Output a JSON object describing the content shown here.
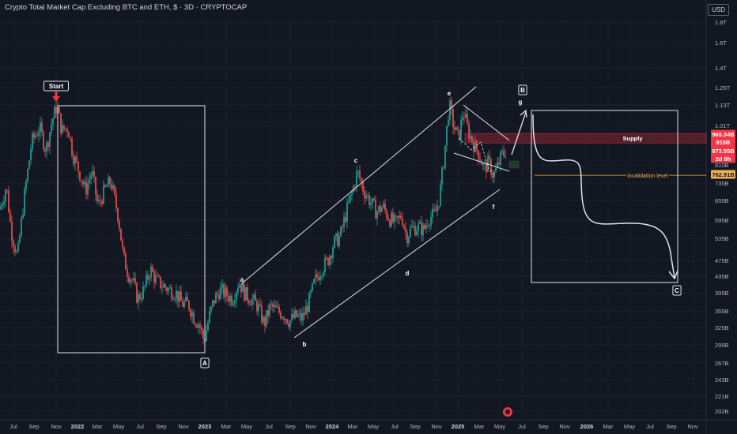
{
  "header": {
    "title": "Crypto Total Market Cap Excluding BTC and ETH, $ · 3D · CRYPTOCAP",
    "currency": "USD"
  },
  "colors": {
    "background": "#131722",
    "up": "#26a69a",
    "down": "#ef5350",
    "line": "#e0e3eb",
    "supply": "#f23645",
    "invalidation": "#f0b152"
  },
  "chart_data": {
    "type": "candlestick",
    "log_scale": true,
    "y_ticks": [
      "1.8T",
      "1.6T",
      "1.4T",
      "1.25T",
      "1.13T",
      "1.01T",
      "810B",
      "735B",
      "655B",
      "595B",
      "535B",
      "475B",
      "435B",
      "395B",
      "355B",
      "325B",
      "295B",
      "267B",
      "243B",
      "221B",
      "202B"
    ],
    "x_ticks": [
      {
        "label": "Jul"
      },
      {
        "label": "Sep"
      },
      {
        "label": "Nov"
      },
      {
        "label": "2022",
        "bold": true
      },
      {
        "label": "Mar"
      },
      {
        "label": "May"
      },
      {
        "label": "Jul"
      },
      {
        "label": "Sep"
      },
      {
        "label": "Nov"
      },
      {
        "label": "2023",
        "bold": true
      },
      {
        "label": "Mar"
      },
      {
        "label": "May"
      },
      {
        "label": "Jul"
      },
      {
        "label": "Sep"
      },
      {
        "label": "Nov"
      },
      {
        "label": "2024",
        "bold": true
      },
      {
        "label": "Mar"
      },
      {
        "label": "May"
      },
      {
        "label": "Jul"
      },
      {
        "label": "Sep"
      },
      {
        "label": "Nov"
      },
      {
        "label": "2025",
        "bold": true
      },
      {
        "label": "Mar"
      },
      {
        "label": "May"
      },
      {
        "label": "Jul"
      },
      {
        "label": "Sep"
      },
      {
        "label": "Nov"
      },
      {
        "label": "2026",
        "bold": true
      },
      {
        "label": "Mar"
      },
      {
        "label": "May"
      },
      {
        "label": "Jul"
      },
      {
        "label": "Sep"
      },
      {
        "label": "Nov"
      }
    ],
    "price_path": [
      [
        0,
        630
      ],
      [
        8,
        720
      ],
      [
        14,
        560
      ],
      [
        22,
        480
      ],
      [
        30,
        660
      ],
      [
        40,
        920
      ],
      [
        50,
        1000
      ],
      [
        58,
        880
      ],
      [
        66,
        1040
      ],
      [
        72,
        1130
      ],
      [
        78,
        980
      ],
      [
        86,
        1000
      ],
      [
        92,
        860
      ],
      [
        100,
        780
      ],
      [
        108,
        700
      ],
      [
        116,
        780
      ],
      [
        124,
        640
      ],
      [
        132,
        700
      ],
      [
        140,
        740
      ],
      [
        150,
        600
      ],
      [
        156,
        480
      ],
      [
        162,
        440
      ],
      [
        168,
        420
      ],
      [
        174,
        380
      ],
      [
        182,
        400
      ],
      [
        190,
        450
      ],
      [
        198,
        420
      ],
      [
        206,
        410
      ],
      [
        214,
        400
      ],
      [
        222,
        395
      ],
      [
        230,
        370
      ],
      [
        238,
        370
      ],
      [
        246,
        340
      ],
      [
        252,
        330
      ],
      [
        258,
        300
      ],
      [
        264,
        340
      ],
      [
        270,
        375
      ],
      [
        278,
        400
      ],
      [
        286,
        390
      ],
      [
        294,
        380
      ],
      [
        302,
        420
      ],
      [
        310,
        390
      ],
      [
        318,
        380
      ],
      [
        326,
        365
      ],
      [
        334,
        330
      ],
      [
        342,
        365
      ],
      [
        350,
        355
      ],
      [
        358,
        350
      ],
      [
        366,
        335
      ],
      [
        374,
        345
      ],
      [
        382,
        340
      ],
      [
        390,
        370
      ],
      [
        398,
        420
      ],
      [
        406,
        450
      ],
      [
        414,
        470
      ],
      [
        422,
        520
      ],
      [
        430,
        540
      ],
      [
        438,
        620
      ],
      [
        446,
        700
      ],
      [
        452,
        780
      ],
      [
        460,
        700
      ],
      [
        468,
        660
      ],
      [
        476,
        620
      ],
      [
        484,
        640
      ],
      [
        492,
        600
      ],
      [
        500,
        580
      ],
      [
        508,
        610
      ],
      [
        514,
        540
      ],
      [
        520,
        565
      ],
      [
        528,
        570
      ],
      [
        536,
        560
      ],
      [
        542,
        600
      ],
      [
        550,
        610
      ],
      [
        556,
        680
      ],
      [
        562,
        860
      ],
      [
        568,
        1140
      ],
      [
        574,
        1000
      ],
      [
        580,
        940
      ],
      [
        586,
        1100
      ],
      [
        592,
        980
      ],
      [
        600,
        900
      ],
      [
        606,
        860
      ],
      [
        612,
        790
      ],
      [
        618,
        820
      ],
      [
        624,
        760
      ],
      [
        628,
        790
      ],
      [
        634,
        850
      ],
      [
        640,
        880
      ]
    ],
    "horizontal_levels": [
      {
        "label": "Supply",
        "price_low": 915,
        "price_high": 965.34
      },
      {
        "label": "invalidation level",
        "price": 762.91
      }
    ],
    "price_tags": [
      {
        "text": "965.34B",
        "price": 965.34,
        "color": "#f23645"
      },
      {
        "text": "915B",
        "price": 915,
        "color": "#f23645"
      },
      {
        "text": "873.55B",
        "price": 873.55,
        "color": "#f23645"
      },
      {
        "text": "2d 8h",
        "price": 845,
        "color": "#f23645"
      },
      {
        "text": "762.91B",
        "price": 762.91,
        "color": "#f0b152",
        "text_color": "#131722"
      }
    ],
    "wave_labels": [
      {
        "text": "Start",
        "boxed": true,
        "red_arrow": true
      },
      {
        "text": "A",
        "boxed": true
      },
      {
        "text": "a"
      },
      {
        "text": "b"
      },
      {
        "text": "c"
      },
      {
        "text": "d"
      },
      {
        "text": "e"
      },
      {
        "text": "f"
      },
      {
        "text": "g"
      },
      {
        "text": "B",
        "boxed": true
      },
      {
        "text": "C",
        "boxed": true
      }
    ]
  }
}
